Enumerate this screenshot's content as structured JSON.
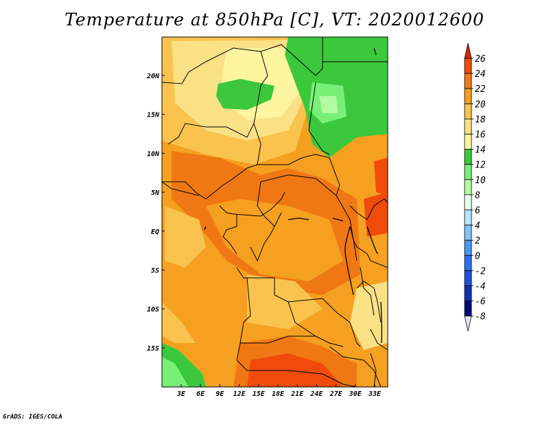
{
  "title": "Temperature at 850hPa [C], VT: 2020012600",
  "credit": "GrADS: IGES/COLA",
  "map": {
    "x_ticks": [
      "3E",
      "6E",
      "9E",
      "12E",
      "15E",
      "18E",
      "21E",
      "24E",
      "27E",
      "30E",
      "33E"
    ],
    "y_ticks": [
      "20N",
      "15N",
      "10N",
      "5N",
      "EQ",
      "5S",
      "10S",
      "15S"
    ],
    "colors": {
      "c12_14": "#3cc83c",
      "c14_16": "#fff5a0",
      "c16_18": "#fae186",
      "c18_20": "#fac34e",
      "c20_22": "#f5a020",
      "c22_24": "#f07814",
      "c24_26": "#f04b0a"
    }
  },
  "colorbar": {
    "labels": [
      "26",
      "24",
      "22",
      "20",
      "18",
      "16",
      "14",
      "12",
      "10",
      "8",
      "6",
      "4",
      "2",
      "0",
      "-2",
      "-4",
      "-6",
      "-8"
    ],
    "colors": [
      "#e6e6ff",
      "#000a78",
      "#0a32b4",
      "#1e50dc",
      "#2d6ef0",
      "#4b96f5",
      "#82c3fa",
      "#b4e6ff",
      "#e6fff0",
      "#b4faa0",
      "#78f078",
      "#3cc83c",
      "#fff5a0",
      "#fae186",
      "#fac34e",
      "#f5a020",
      "#f07814",
      "#f04b0a",
      "#d2280a"
    ]
  }
}
